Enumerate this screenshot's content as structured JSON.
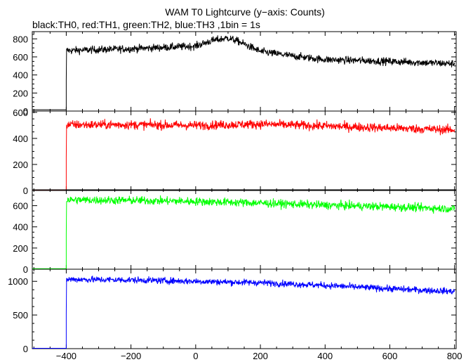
{
  "chart_data": {
    "type": "line",
    "title": "WAM T0 Lightcurve (y−axis: Counts)",
    "subtitle": "black:TH0, red:TH1, green:TH2, blue:TH3 ,1bin = 1s",
    "xlim": [
      -505,
      805
    ],
    "x_ticks": [
      -400,
      -200,
      0,
      200,
      400,
      600,
      800
    ],
    "x_tick_labels": [
      "−400",
      "−200",
      "0",
      "200",
      "400",
      "600",
      "800"
    ],
    "panels": [
      {
        "name": "TH0",
        "color": "#000000",
        "ylim": [
          0,
          880
        ],
        "y_ticks": [
          0,
          200,
          400,
          600,
          800
        ],
        "y_tick_labels": [
          "0",
          "200",
          "400",
          "600",
          "800"
        ],
        "background_level": 15,
        "onset_x": -400,
        "noise": 30,
        "trend": [
          [
            -400,
            670
          ],
          [
            -200,
            690
          ],
          [
            0,
            720
          ],
          [
            50,
            780
          ],
          [
            100,
            810
          ],
          [
            130,
            775
          ],
          [
            200,
            660
          ],
          [
            300,
            610
          ],
          [
            400,
            570
          ],
          [
            600,
            550
          ],
          [
            800,
            525
          ]
        ]
      },
      {
        "name": "TH1",
        "color": "#ff0000",
        "ylim": [
          0,
          610
        ],
        "y_ticks": [
          0,
          200,
          400,
          600
        ],
        "y_tick_labels": [
          "0",
          "200",
          "400",
          "600"
        ],
        "background_level": 5,
        "onset_x": -400,
        "noise": 25,
        "trend": [
          [
            -400,
            505
          ],
          [
            -200,
            505
          ],
          [
            0,
            500
          ],
          [
            200,
            510
          ],
          [
            400,
            495
          ],
          [
            600,
            480
          ],
          [
            800,
            465
          ]
        ]
      },
      {
        "name": "TH2",
        "color": "#00ff00",
        "ylim": [
          0,
          750
        ],
        "y_ticks": [
          0,
          200,
          400,
          600
        ],
        "y_tick_labels": [
          "0",
          "200",
          "400",
          "600"
        ],
        "background_level": 5,
        "onset_x": -400,
        "noise": 28,
        "trend": [
          [
            -400,
            655
          ],
          [
            -200,
            650
          ],
          [
            0,
            640
          ],
          [
            200,
            625
          ],
          [
            400,
            605
          ],
          [
            600,
            590
          ],
          [
            800,
            570
          ]
        ]
      },
      {
        "name": "TH3",
        "color": "#0000ff",
        "ylim": [
          0,
          1180
        ],
        "y_ticks": [
          0,
          500,
          1000
        ],
        "y_tick_labels": [
          "0",
          "500",
          "1000"
        ],
        "background_level": 5,
        "onset_x": -400,
        "noise": 35,
        "trend": [
          [
            -400,
            1030
          ],
          [
            -200,
            1020
          ],
          [
            0,
            1000
          ],
          [
            200,
            980
          ],
          [
            400,
            940
          ],
          [
            600,
            890
          ],
          [
            800,
            850
          ]
        ]
      }
    ]
  }
}
